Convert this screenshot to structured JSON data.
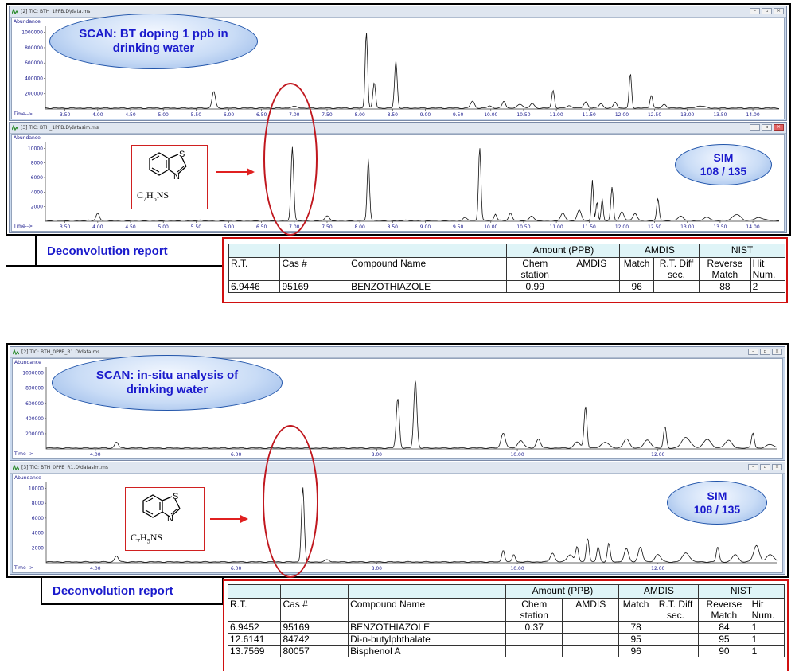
{
  "panel1": {
    "scan_window": {
      "title": "[2] TIC: BTH_1PPB.D\\data.ms",
      "y_label": "Abundance",
      "x_label": "Time-->",
      "y_ticks": [
        "1000000",
        "800000",
        "600000",
        "400000",
        "200000"
      ],
      "x_ticks": [
        "3.50",
        "4.00",
        "4.50",
        "5.00",
        "5.50",
        "6.00",
        "6.50",
        "7.00",
        "7.50",
        "8.00",
        "8.50",
        "9.00",
        "9.50",
        "10.00",
        "10.50",
        "11.00",
        "11.50",
        "12.00",
        "12.50",
        "13.00",
        "13.50",
        "14.00"
      ],
      "callout_line1": "SCAN: BT doping 1 ppb in",
      "callout_line2": "drinking water"
    },
    "sim_window": {
      "title": "[3] TIC: BTH_1PPB.D\\datasim.ms",
      "y_label": "Abundance",
      "x_label": "Time-->",
      "y_ticks": [
        "10000",
        "8000",
        "6000",
        "4000",
        "2000"
      ],
      "x_ticks": [
        "3.50",
        "4.00",
        "4.50",
        "5.00",
        "5.50",
        "6.00",
        "6.50",
        "7.00",
        "7.50",
        "8.00",
        "8.50",
        "9.00",
        "9.50",
        "10.00",
        "10.50",
        "11.00",
        "11.50",
        "12.00",
        "12.50",
        "13.00",
        "13.50",
        "14.00"
      ],
      "callout_line1": "SIM",
      "callout_line2": "108 / 135"
    },
    "report_label": "Deconvolution report",
    "table": {
      "group_amount": "Amount (PPB)",
      "group_amdis": "AMDIS",
      "group_nist": "NIST",
      "col_rt": "R.T.",
      "col_cas": "Cas #",
      "col_name": "Compound Name",
      "col_chem_1": "Chem",
      "col_chem_2": "station",
      "col_amdis": "AMDIS",
      "col_match": "Match",
      "col_rtdiff_1": "R.T. Diff",
      "col_rtdiff_2": "sec.",
      "col_rev_1": "Reverse",
      "col_rev_2": "Match",
      "col_hit_1": "Hit",
      "col_hit_2": "Num.",
      "rows": [
        {
          "rt": "6.9446",
          "cas": "95169",
          "name": "BENZOTHIAZOLE",
          "chem": "0.99",
          "amdis": "",
          "match": "96",
          "rtdiff": "",
          "rev": "88",
          "hit": "2"
        }
      ]
    }
  },
  "panel2": {
    "scan_window": {
      "title": "[2] TIC: BTH_0PPB_R1.D\\data.ms",
      "y_label": "Abundance",
      "x_label": "Time-->",
      "y_ticks": [
        "1000000",
        "800000",
        "600000",
        "400000",
        "200000"
      ],
      "x_ticks": [
        "4.00",
        "6.00",
        "8.00",
        "10.00",
        "12.00"
      ],
      "callout_line1": "SCAN: in-situ analysis of",
      "callout_line2": "drinking water"
    },
    "sim_window": {
      "title": "[3] TIC: BTH_0PPB_R1.D\\datasim.ms",
      "y_label": "Abundance",
      "x_label": "Time-->",
      "y_ticks": [
        "10000",
        "8000",
        "6000",
        "4000",
        "2000"
      ],
      "x_ticks": [
        "4.00",
        "6.00",
        "8.00",
        "10.00",
        "12.00"
      ],
      "callout_line1": "SIM",
      "callout_line2": "108 / 135"
    },
    "report_label": "Deconvolution report",
    "table": {
      "group_amount": "Amount (PPB)",
      "group_amdis": "AMDIS",
      "group_nist": "NIST",
      "col_rt": "R.T.",
      "col_cas": "Cas #",
      "col_name": "Compound Name",
      "col_chem_1": "Chem",
      "col_chem_2": "station",
      "col_amdis": "AMDIS",
      "col_match": "Match",
      "col_rtdiff_1": "R.T. Diff",
      "col_rtdiff_2": "sec.",
      "col_rev_1": "Reverse",
      "col_rev_2": "Match",
      "col_hit_1": "Hit",
      "col_hit_2": "Num.",
      "rows": [
        {
          "rt": "6.9452",
          "cas": "95169",
          "name": "BENZOTHIAZOLE",
          "chem": "0.37",
          "amdis": "",
          "match": "78",
          "rtdiff": "",
          "rev": "84",
          "hit": "1"
        },
        {
          "rt": "12.6141",
          "cas": "84742",
          "name": "Di-n-butylphthalate",
          "chem": "",
          "amdis": "",
          "match": "95",
          "rtdiff": "",
          "rev": "95",
          "hit": "1"
        },
        {
          "rt": "13.7569",
          "cas": "80057",
          "name": "Bisphenol A",
          "chem": "",
          "amdis": "",
          "match": "96",
          "rtdiff": "",
          "rev": "90",
          "hit": "1"
        }
      ]
    }
  },
  "molecule": {
    "formula_c": "C",
    "formula_c_n": "7",
    "formula_h": "H",
    "formula_h_n": "5",
    "formula_rest": "NS",
    "atom_s": "S",
    "atom_n": "N"
  },
  "traces": {
    "p1_scan": {
      "x_range": [
        3.2,
        14.4
      ],
      "peaks": [
        [
          5.77,
          0.22,
          0.025
        ],
        [
          7.0,
          0.02,
          0.05
        ],
        [
          8.1,
          1.0,
          0.018
        ],
        [
          8.22,
          0.33,
          0.02
        ],
        [
          8.55,
          0.62,
          0.02
        ],
        [
          9.72,
          0.09,
          0.03
        ],
        [
          9.98,
          0.03,
          0.03
        ],
        [
          10.2,
          0.09,
          0.025
        ],
        [
          10.45,
          0.05,
          0.04
        ],
        [
          10.63,
          0.06,
          0.03
        ],
        [
          10.95,
          0.23,
          0.02
        ],
        [
          11.2,
          0.03,
          0.04
        ],
        [
          11.45,
          0.08,
          0.03
        ],
        [
          11.68,
          0.06,
          0.03
        ],
        [
          11.9,
          0.08,
          0.025
        ],
        [
          12.13,
          0.45,
          0.018
        ],
        [
          12.45,
          0.17,
          0.02
        ],
        [
          12.65,
          0.05,
          0.03
        ],
        [
          13.2,
          0.03,
          0.06
        ]
      ]
    },
    "p1_sim": {
      "x_range": [
        3.2,
        14.4
      ],
      "peaks": [
        [
          4.0,
          0.1,
          0.025
        ],
        [
          6.97,
          1.0,
          0.02
        ],
        [
          7.5,
          0.06,
          0.03
        ],
        [
          8.13,
          0.85,
          0.018
        ],
        [
          9.6,
          0.04,
          0.03
        ],
        [
          9.83,
          1.0,
          0.018
        ],
        [
          10.07,
          0.09,
          0.02
        ],
        [
          10.3,
          0.1,
          0.025
        ],
        [
          10.62,
          0.06,
          0.03
        ],
        [
          11.1,
          0.1,
          0.03
        ],
        [
          11.35,
          0.14,
          0.03
        ],
        [
          11.55,
          0.55,
          0.015
        ],
        [
          11.62,
          0.25,
          0.015
        ],
        [
          11.7,
          0.3,
          0.015
        ],
        [
          11.85,
          0.45,
          0.018
        ],
        [
          12.0,
          0.12,
          0.03
        ],
        [
          12.2,
          0.1,
          0.03
        ],
        [
          12.55,
          0.3,
          0.018
        ],
        [
          12.9,
          0.06,
          0.04
        ],
        [
          13.3,
          0.04,
          0.05
        ],
        [
          13.75,
          0.08,
          0.06
        ],
        [
          14.1,
          0.04,
          0.06
        ]
      ]
    },
    "p2_scan": {
      "x_range": [
        3.3,
        13.7
      ],
      "peaks": [
        [
          4.3,
          0.08,
          0.025
        ],
        [
          8.3,
          0.65,
          0.022
        ],
        [
          8.55,
          0.9,
          0.022
        ],
        [
          9.8,
          0.2,
          0.03
        ],
        [
          10.05,
          0.1,
          0.04
        ],
        [
          10.3,
          0.12,
          0.03
        ],
        [
          10.85,
          0.08,
          0.04
        ],
        [
          10.97,
          0.55,
          0.02
        ],
        [
          11.25,
          0.08,
          0.05
        ],
        [
          11.55,
          0.12,
          0.04
        ],
        [
          11.85,
          0.1,
          0.05
        ],
        [
          12.1,
          0.28,
          0.02
        ],
        [
          12.4,
          0.14,
          0.06
        ],
        [
          12.7,
          0.12,
          0.05
        ],
        [
          13.0,
          0.1,
          0.05
        ],
        [
          13.35,
          0.2,
          0.02
        ],
        [
          13.6,
          0.05,
          0.05
        ]
      ]
    },
    "p2_sim": {
      "x_range": [
        3.3,
        13.7
      ],
      "peaks": [
        [
          4.3,
          0.08,
          0.025
        ],
        [
          6.95,
          1.0,
          0.02
        ],
        [
          7.3,
          0.03,
          0.03
        ],
        [
          9.8,
          0.16,
          0.02
        ],
        [
          9.95,
          0.1,
          0.02
        ],
        [
          10.5,
          0.12,
          0.03
        ],
        [
          10.75,
          0.1,
          0.04
        ],
        [
          10.85,
          0.2,
          0.02
        ],
        [
          11.0,
          0.32,
          0.02
        ],
        [
          11.15,
          0.2,
          0.02
        ],
        [
          11.3,
          0.25,
          0.02
        ],
        [
          11.55,
          0.18,
          0.03
        ],
        [
          11.75,
          0.2,
          0.03
        ],
        [
          12.0,
          0.1,
          0.04
        ],
        [
          12.4,
          0.12,
          0.05
        ],
        [
          12.85,
          0.2,
          0.02
        ],
        [
          13.1,
          0.1,
          0.04
        ],
        [
          13.4,
          0.22,
          0.04
        ],
        [
          13.6,
          0.1,
          0.05
        ]
      ]
    }
  }
}
